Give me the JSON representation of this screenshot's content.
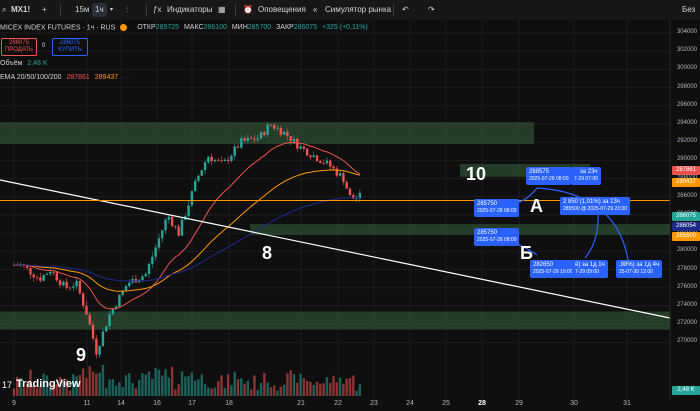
{
  "toolbar": {
    "symbol": "MX1!",
    "intervals": [
      "15м",
      "1ч"
    ],
    "indicators": "Индикаторы",
    "alerts": "Оповещения",
    "replay": "Симулятор рынка",
    "right_text": "Без"
  },
  "legend": {
    "title": "MICEX INDEX FUTURES · 1ч · RUS",
    "ohlc": [
      {
        "label": "ОТКР",
        "value": "285725"
      },
      {
        "label": "МАКС",
        "value": "286100"
      },
      {
        "label": "МИН",
        "value": "285700"
      },
      {
        "label": "ЗАКР",
        "value": "286075"
      }
    ],
    "change": "+325 (+0,11%)",
    "sell_price": "286075",
    "sell_label": "ПРОДАТЬ",
    "spread": "0",
    "buy_price": "286075",
    "buy_label": "КУПИТЬ",
    "volume_label": "Объём",
    "volume_value": "2,48 K",
    "ema_label": "EMA 20/50/100/200",
    "ema_values": [
      "287861",
      "289437",
      "—"
    ]
  },
  "colors": {
    "up": "#26a69a",
    "down": "#ef5350",
    "zone": "#2e4d32",
    "ema20": "#ef5350",
    "ema50": "#ff9800",
    "ema100": "#1e2a8a",
    "trendline": "#ffffff",
    "hline": "#ff9800",
    "callout": "#2962ff"
  },
  "price_axis": {
    "ticks": [
      "304000",
      "302000",
      "300000",
      "298000",
      "296000",
      "294000",
      "292000",
      "290000",
      "288000",
      "286000",
      "284000",
      "282000",
      "280000",
      "278000",
      "276000",
      "274000",
      "272000",
      "270000"
    ],
    "tags": [
      {
        "value": "289437",
        "color": "#ff9800"
      },
      {
        "value": "287861",
        "color": "#ef5350"
      },
      {
        "value": "286075",
        "color": "#26a69a"
      },
      {
        "value": "286054",
        "color": "#1e2a8a"
      },
      {
        "value": "285600",
        "color": "#ff9800"
      },
      {
        "value": "2,48 K",
        "color": "#26a69a"
      }
    ]
  },
  "time_axis": [
    "9",
    "11",
    "14",
    "16",
    "17",
    "18",
    "21",
    "22",
    "23",
    "24",
    "25",
    "28",
    "29",
    "30",
    "31"
  ],
  "annotations": {
    "wave_labels": [
      "10",
      "8",
      "9",
      "А",
      "Б"
    ],
    "callouts": [
      {
        "price": "288575",
        "time": "2025-07-29 08:00"
      },
      {
        "price": "285750",
        "time": "2025-07-28 08:00"
      },
      {
        "price": "285750",
        "time": "2025-07-28 08:00"
      },
      {
        "price": "282650",
        "time": "2025-07-29 10:00"
      },
      {
        "text": "за 23ч",
        "sub": "7-29  07:00"
      },
      {
        "text": "2 850 (1,01%) за 13ч",
        "sub": "285500 @ 2025-07-29  23:00"
      },
      {
        "text": "ё) за 1д 1ч",
        "sub": "7-29  09:00"
      },
      {
        "text": ",98%) за 1д 4ч",
        "sub": "25-07-30  12:00"
      }
    ]
  },
  "branding": "TradingView",
  "chart_data": {
    "type": "candlestick",
    "title": "MICEX INDEX FUTURES · 1ч · RUS",
    "x_dates": [
      "9",
      "11",
      "14",
      "16",
      "17",
      "18",
      "21",
      "22",
      "23",
      "24",
      "25",
      "28",
      "29",
      "30",
      "31"
    ],
    "ylim": [
      269000,
      305000
    ],
    "last_close": 286075,
    "ohlc_last": {
      "open": 285725,
      "high": 286100,
      "low": 285700,
      "close": 286075
    },
    "ema": {
      "ema20": 287861,
      "ema50": 289437,
      "ema100": 286054
    },
    "price_line": 285600,
    "zones": [
      [
        291800,
        294200
      ],
      [
        288200,
        289600
      ],
      [
        281800,
        283000
      ],
      [
        271400,
        273400
      ]
    ],
    "waypoints": [
      {
        "x": 0.2,
        "y": 278500
      },
      {
        "x": 0.7,
        "y": 277000
      },
      {
        "x": 1.0,
        "y": 278000
      },
      {
        "x": 1.4,
        "y": 276000
      },
      {
        "x": 1.7,
        "y": 276500
      },
      {
        "x": 2.0,
        "y": 273000
      },
      {
        "x": 2.25,
        "y": 269000
      },
      {
        "x": 2.6,
        "y": 273000
      },
      {
        "x": 3.1,
        "y": 276500
      },
      {
        "x": 3.6,
        "y": 277500
      },
      {
        "x": 4.2,
        "y": 284000
      },
      {
        "x": 4.5,
        "y": 282000
      },
      {
        "x": 5.0,
        "y": 288000
      },
      {
        "x": 5.3,
        "y": 290500
      },
      {
        "x": 5.7,
        "y": 289500
      },
      {
        "x": 6.2,
        "y": 292000
      },
      {
        "x": 6.7,
        "y": 292500
      },
      {
        "x": 7.0,
        "y": 294000
      },
      {
        "x": 7.4,
        "y": 293000
      },
      {
        "x": 7.8,
        "y": 291500
      },
      {
        "x": 8.2,
        "y": 290500
      },
      {
        "x": 8.6,
        "y": 289500
      },
      {
        "x": 9.0,
        "y": 288000
      },
      {
        "x": 9.2,
        "y": 285750
      },
      {
        "x": 9.5,
        "y": 286075
      }
    ]
  }
}
